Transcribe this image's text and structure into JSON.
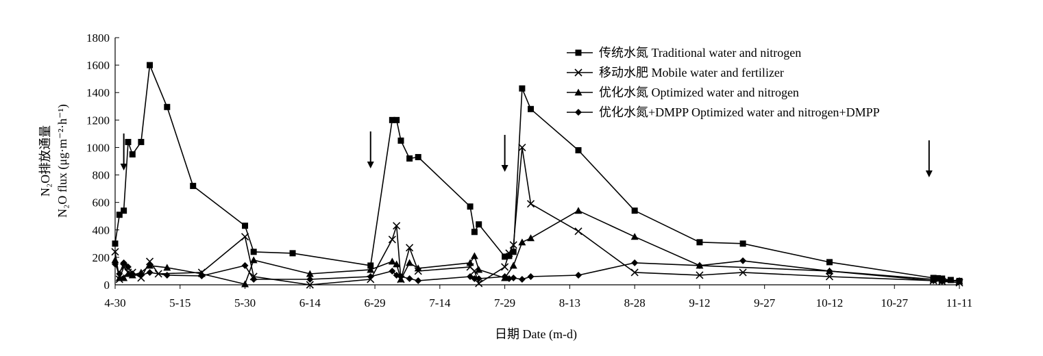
{
  "chart_data": {
    "type": "line",
    "xlabel": "日期 Date (m-d)",
    "ylabel_line1": "N₂O排放通量",
    "ylabel_line2": "N₂O flux (μg·m⁻²·h⁻¹)",
    "ylim": [
      0,
      1800
    ],
    "yticks": [
      0,
      200,
      400,
      600,
      800,
      1000,
      1200,
      1400,
      1600,
      1800
    ],
    "xlim": [
      "2020-04-30",
      "2020-11-11"
    ],
    "xticks": [
      "4-30",
      "5-15",
      "5-30",
      "6-14",
      "6-29",
      "7-14",
      "7-29",
      "8-13",
      "8-28",
      "9-12",
      "9-27",
      "10-12",
      "10-27",
      "11-11"
    ],
    "grid": false,
    "legend_position": "top-right",
    "arrows": [
      "2020-05-02",
      "2020-06-28",
      "2020-07-29",
      "2020-11-04"
    ],
    "series": [
      {
        "name": "传统水氮 Traditional water and nitrogen",
        "marker": "square",
        "points": [
          [
            "2020-04-30",
            300
          ],
          [
            "2020-05-01",
            510
          ],
          [
            "2020-05-02",
            540
          ],
          [
            "2020-05-03",
            1040
          ],
          [
            "2020-05-04",
            950
          ],
          [
            "2020-05-06",
            1040
          ],
          [
            "2020-05-08",
            1600
          ],
          [
            "2020-05-12",
            1295
          ],
          [
            "2020-05-18",
            720
          ],
          [
            "2020-05-30",
            430
          ],
          [
            "2020-06-01",
            240
          ],
          [
            "2020-06-10",
            230
          ],
          [
            "2020-06-28",
            140
          ],
          [
            "2020-07-03",
            1200
          ],
          [
            "2020-07-04",
            1200
          ],
          [
            "2020-07-05",
            1050
          ],
          [
            "2020-07-07",
            920
          ],
          [
            "2020-07-09",
            930
          ],
          [
            "2020-07-21",
            570
          ],
          [
            "2020-07-22",
            385
          ],
          [
            "2020-07-23",
            440
          ],
          [
            "2020-07-29",
            205
          ],
          [
            "2020-07-30",
            210
          ],
          [
            "2020-07-31",
            240
          ],
          [
            "2020-08-02",
            1430
          ],
          [
            "2020-08-04",
            1280
          ],
          [
            "2020-08-15",
            980
          ],
          [
            "2020-08-28",
            540
          ],
          [
            "2020-09-12",
            310
          ],
          [
            "2020-09-22",
            300
          ],
          [
            "2020-10-12",
            165
          ],
          [
            "2020-11-05",
            50
          ],
          [
            "2020-11-06",
            48
          ],
          [
            "2020-11-07",
            45
          ],
          [
            "2020-11-09",
            35
          ],
          [
            "2020-11-11",
            28
          ]
        ]
      },
      {
        "name": "移动水肥 Mobile water and fertilizer",
        "marker": "x",
        "points": [
          [
            "2020-04-30",
            240
          ],
          [
            "2020-05-01",
            40
          ],
          [
            "2020-05-02",
            130
          ],
          [
            "2020-05-03",
            90
          ],
          [
            "2020-05-04",
            90
          ],
          [
            "2020-05-06",
            50
          ],
          [
            "2020-05-08",
            170
          ],
          [
            "2020-05-10",
            80
          ],
          [
            "2020-05-20",
            90
          ],
          [
            "2020-05-30",
            350
          ],
          [
            "2020-06-01",
            60
          ],
          [
            "2020-06-14",
            0
          ],
          [
            "2020-06-28",
            40
          ],
          [
            "2020-07-03",
            330
          ],
          [
            "2020-07-04",
            430
          ],
          [
            "2020-07-05",
            40
          ],
          [
            "2020-07-07",
            270
          ],
          [
            "2020-07-09",
            100
          ],
          [
            "2020-07-21",
            130
          ],
          [
            "2020-07-22",
            100
          ],
          [
            "2020-07-23",
            10
          ],
          [
            "2020-07-29",
            130
          ],
          [
            "2020-07-30",
            230
          ],
          [
            "2020-07-31",
            290
          ],
          [
            "2020-08-02",
            1000
          ],
          [
            "2020-08-04",
            590
          ],
          [
            "2020-08-15",
            390
          ],
          [
            "2020-08-28",
            90
          ],
          [
            "2020-09-12",
            70
          ],
          [
            "2020-09-22",
            90
          ],
          [
            "2020-10-12",
            60
          ],
          [
            "2020-11-05",
            30
          ],
          [
            "2020-11-07",
            25
          ],
          [
            "2020-11-11",
            15
          ]
        ]
      },
      {
        "name": "优化水氮 Optimized water and nitrogen",
        "marker": "triangle",
        "points": [
          [
            "2020-04-30",
            180
          ],
          [
            "2020-05-01",
            50
          ],
          [
            "2020-05-02",
            50
          ],
          [
            "2020-05-03",
            80
          ],
          [
            "2020-05-04",
            70
          ],
          [
            "2020-05-06",
            90
          ],
          [
            "2020-05-08",
            140
          ],
          [
            "2020-05-12",
            125
          ],
          [
            "2020-05-20",
            80
          ],
          [
            "2020-05-30",
            5
          ],
          [
            "2020-06-01",
            180
          ],
          [
            "2020-06-14",
            80
          ],
          [
            "2020-06-28",
            110
          ],
          [
            "2020-07-03",
            170
          ],
          [
            "2020-07-04",
            150
          ],
          [
            "2020-07-05",
            40
          ],
          [
            "2020-07-07",
            160
          ],
          [
            "2020-07-09",
            120
          ],
          [
            "2020-07-21",
            160
          ],
          [
            "2020-07-22",
            210
          ],
          [
            "2020-07-23",
            110
          ],
          [
            "2020-07-29",
            50
          ],
          [
            "2020-07-31",
            140
          ],
          [
            "2020-08-02",
            310
          ],
          [
            "2020-08-04",
            340
          ],
          [
            "2020-08-15",
            540
          ],
          [
            "2020-08-28",
            350
          ],
          [
            "2020-09-12",
            140
          ],
          [
            "2020-10-12",
            100
          ],
          [
            "2020-11-05",
            40
          ],
          [
            "2020-11-07",
            35
          ],
          [
            "2020-11-11",
            25
          ]
        ]
      },
      {
        "name": "优化水氮+DMPP Optimized water and nitrogen+DMPP",
        "marker": "diamond",
        "points": [
          [
            "2020-04-30",
            150
          ],
          [
            "2020-05-01",
            80
          ],
          [
            "2020-05-02",
            160
          ],
          [
            "2020-05-03",
            130
          ],
          [
            "2020-05-04",
            80
          ],
          [
            "2020-05-06",
            70
          ],
          [
            "2020-05-08",
            90
          ],
          [
            "2020-05-12",
            70
          ],
          [
            "2020-05-20",
            65
          ],
          [
            "2020-05-30",
            140
          ],
          [
            "2020-06-01",
            40
          ],
          [
            "2020-06-14",
            40
          ],
          [
            "2020-06-28",
            60
          ],
          [
            "2020-07-03",
            100
          ],
          [
            "2020-07-04",
            70
          ],
          [
            "2020-07-05",
            60
          ],
          [
            "2020-07-07",
            45
          ],
          [
            "2020-07-09",
            30
          ],
          [
            "2020-07-21",
            60
          ],
          [
            "2020-07-22",
            45
          ],
          [
            "2020-07-23",
            45
          ],
          [
            "2020-07-29",
            60
          ],
          [
            "2020-07-30",
            45
          ],
          [
            "2020-07-31",
            50
          ],
          [
            "2020-08-02",
            40
          ],
          [
            "2020-08-04",
            60
          ],
          [
            "2020-08-15",
            70
          ],
          [
            "2020-08-28",
            160
          ],
          [
            "2020-09-12",
            140
          ],
          [
            "2020-09-22",
            175
          ],
          [
            "2020-10-12",
            100
          ],
          [
            "2020-11-05",
            30
          ],
          [
            "2020-11-07",
            25
          ],
          [
            "2020-11-11",
            30
          ]
        ]
      }
    ]
  }
}
